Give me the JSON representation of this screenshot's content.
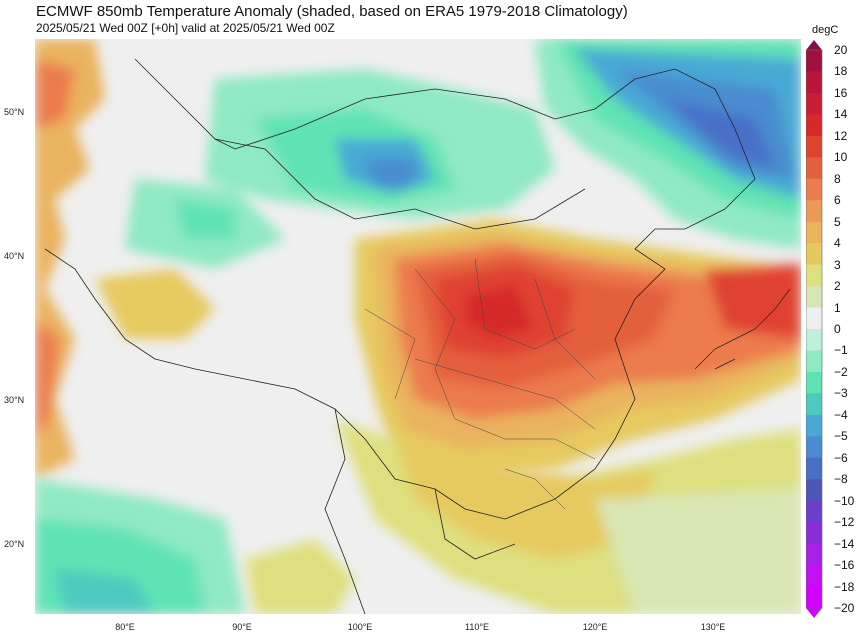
{
  "title": "ECMWF 850mb Temperature Anomaly (shaded, based on ERA5 1979-2018 Climatology)",
  "subtitle": "2025/05/21 Wed 00Z [+0h] valid at 2025/05/21 Wed 00Z",
  "units": "degC",
  "lat_labels": [
    "50°N",
    "40°N",
    "30°N",
    "20°N"
  ],
  "lon_labels": [
    "80°E",
    "90°E",
    "100°E",
    "110°E",
    "120°E",
    "130°E"
  ],
  "colorbar": {
    "ticks": [
      "20",
      "18",
      "16",
      "14",
      "12",
      "10",
      "8",
      "6",
      "5",
      "4",
      "3",
      "2",
      "1",
      "0",
      "−1",
      "−2",
      "−3",
      "−4",
      "−5",
      "−6",
      "−8",
      "−10",
      "−12",
      "−14",
      "−16",
      "−18",
      "−20"
    ],
    "colors": [
      "#8b0a4e",
      "#a0103f",
      "#b8173b",
      "#c81d34",
      "#d62a2a",
      "#e04230",
      "#e4613e",
      "#ec7b4e",
      "#eb9a58",
      "#eab35e",
      "#e6c95e",
      "#dee07f",
      "#d8e6b4",
      "#efefef",
      "#bff0dc",
      "#8fe9c2",
      "#5ee3b4",
      "#4fc9c0",
      "#4aa9d4",
      "#4a8ccf",
      "#4a6fc7",
      "#4f55b6",
      "#6b3fc9",
      "#8a2ed8",
      "#a820e8",
      "#c210f2",
      "#d400ff"
    ]
  },
  "map_regions": [
    {
      "name": "cool-northwest-band",
      "color": "#8fe9c2"
    },
    {
      "name": "cool-mongolia",
      "color": "#4fc9c0"
    },
    {
      "name": "cold-northeast",
      "color": "#4a8ccf"
    },
    {
      "name": "warm-central-china",
      "color": "#e04230"
    },
    {
      "name": "warm-japan",
      "color": "#e4613e"
    },
    {
      "name": "neutral-tibet",
      "color": "#efefef"
    },
    {
      "name": "mild-south-china",
      "color": "#e6c95e"
    },
    {
      "name": "cool-bay-of-bengal",
      "color": "#5ee3b4"
    }
  ]
}
